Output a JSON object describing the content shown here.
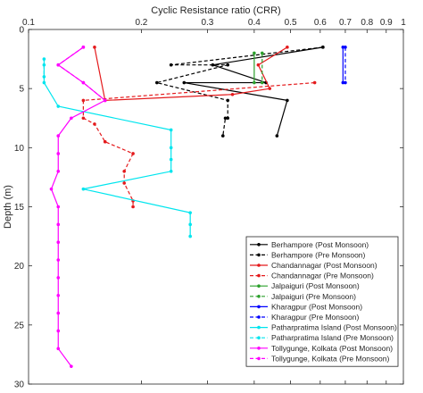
{
  "chart_data": {
    "type": "line",
    "title": "",
    "xlabel": "Cyclic Resistance ratio (CRR)",
    "ylabel": "Depth (m)",
    "x_scale": "log",
    "x_position": "top",
    "y_reversed": true,
    "xlim": [
      0.1,
      1
    ],
    "ylim": [
      0,
      30
    ],
    "x_ticks": [
      "0.1",
      "0.2",
      "0.3",
      "0.4",
      "0.5",
      "0.6",
      "0.7",
      "0.8",
      "0.9",
      "1"
    ],
    "y_ticks": [
      "0",
      "5",
      "10",
      "15",
      "20",
      "25",
      "30"
    ],
    "grid": false,
    "legend_position": "bottom-right",
    "series": [
      {
        "name": "Berhampore (Post Monsoon)",
        "color": "#000000",
        "dash": false,
        "marker": "dot",
        "points": [
          [
            0.61,
            1.5
          ],
          [
            0.31,
            3.0
          ],
          [
            0.43,
            4.5
          ],
          [
            0.26,
            4.5
          ],
          [
            0.49,
            6.0
          ],
          [
            0.46,
            9.0
          ]
        ]
      },
      {
        "name": "Berhampore (Pre Monsoon)",
        "color": "#000000",
        "dash": true,
        "marker": "dot",
        "points": [
          [
            0.61,
            1.5
          ],
          [
            0.24,
            3.0
          ],
          [
            0.34,
            3.0
          ],
          [
            0.22,
            4.5
          ],
          [
            0.34,
            6.0
          ],
          [
            0.34,
            7.5
          ],
          [
            0.335,
            7.5
          ],
          [
            0.33,
            9.0
          ]
        ]
      },
      {
        "name": "Chandannagar (Post Monsoon)",
        "color": "#e41a1c",
        "dash": false,
        "marker": "dot",
        "points": [
          [
            0.15,
            1.5
          ],
          [
            0.16,
            6.0
          ],
          [
            0.35,
            5.5
          ],
          [
            0.44,
            5.0
          ],
          [
            0.41,
            3.0
          ],
          [
            0.49,
            1.5
          ]
        ]
      },
      {
        "name": "Chandannagar (Pre Monsoon)",
        "color": "#e41a1c",
        "dash": true,
        "marker": "dot",
        "points": [
          [
            0.58,
            4.5
          ],
          [
            0.14,
            6.0
          ],
          [
            0.14,
            7.5
          ],
          [
            0.15,
            8.0
          ],
          [
            0.16,
            9.5
          ],
          [
            0.19,
            10.5
          ],
          [
            0.18,
            12.0
          ],
          [
            0.18,
            13.0
          ],
          [
            0.19,
            14.5
          ],
          [
            0.19,
            15.0
          ]
        ]
      },
      {
        "name": "Jalpaiguri (Post Monsoon)",
        "color": "#2ca02c",
        "dash": false,
        "marker": "dot",
        "points": [
          [
            0.4,
            2.0
          ],
          [
            0.4,
            4.5
          ]
        ]
      },
      {
        "name": "Jalpaiguri (Pre Monsoon)",
        "color": "#2ca02c",
        "dash": true,
        "marker": "dot",
        "points": [
          [
            0.42,
            2.0
          ],
          [
            0.42,
            4.5
          ]
        ]
      },
      {
        "name": "Kharagpur (Post Monsoon)",
        "color": "#0000ff",
        "dash": false,
        "marker": "dot",
        "points": [
          [
            0.69,
            1.5
          ],
          [
            0.69,
            4.5
          ]
        ]
      },
      {
        "name": "Kharagpur (Pre Monsoon)",
        "color": "#0000ff",
        "dash": true,
        "marker": "dot",
        "points": [
          [
            0.7,
            1.5
          ],
          [
            0.7,
            4.5
          ]
        ]
      },
      {
        "name": "Patharpratima Island (Post Monsoon)",
        "color": "#00e5ee",
        "dash": false,
        "marker": "dot",
        "points": [
          [
            0.11,
            2.5
          ],
          [
            0.11,
            4.5
          ],
          [
            0.12,
            6.5
          ],
          [
            0.24,
            8.5
          ],
          [
            0.24,
            10.0
          ],
          [
            0.24,
            11.0
          ],
          [
            0.24,
            12.0
          ],
          [
            0.14,
            13.5
          ],
          [
            0.27,
            15.5
          ],
          [
            0.27,
            16.5
          ],
          [
            0.27,
            17.5
          ]
        ]
      },
      {
        "name": "Patharpratima Island (Pre Monsoon)",
        "color": "#00e5ee",
        "dash": true,
        "marker": "dot",
        "points": [
          [
            0.11,
            3.0
          ],
          [
            0.11,
            4.0
          ]
        ]
      },
      {
        "name": "Tollygunge, Kolkata (Post Monsoon)",
        "color": "#ff00ff",
        "dash": false,
        "marker": "dot",
        "points": [
          [
            0.14,
            1.5
          ],
          [
            0.12,
            3.0
          ],
          [
            0.14,
            4.5
          ],
          [
            0.16,
            6.0
          ],
          [
            0.13,
            7.5
          ],
          [
            0.12,
            9.0
          ],
          [
            0.12,
            10.5
          ],
          [
            0.12,
            12.0
          ],
          [
            0.115,
            13.5
          ],
          [
            0.12,
            15.0
          ],
          [
            0.12,
            16.5
          ],
          [
            0.12,
            18.0
          ],
          [
            0.12,
            19.5
          ],
          [
            0.12,
            21.0
          ],
          [
            0.12,
            22.5
          ],
          [
            0.12,
            24.0
          ],
          [
            0.12,
            25.5
          ],
          [
            0.12,
            27.0
          ],
          [
            0.13,
            28.5
          ]
        ]
      },
      {
        "name": "Tollygunge, Kolkata (Pre Monsoon)",
        "color": "#ff00ff",
        "dash": true,
        "marker": "dot",
        "points": [
          [
            0.14,
            1.5
          ],
          [
            0.12,
            3.0
          ],
          [
            0.14,
            4.5
          ],
          [
            0.16,
            6.0
          ]
        ]
      }
    ]
  }
}
